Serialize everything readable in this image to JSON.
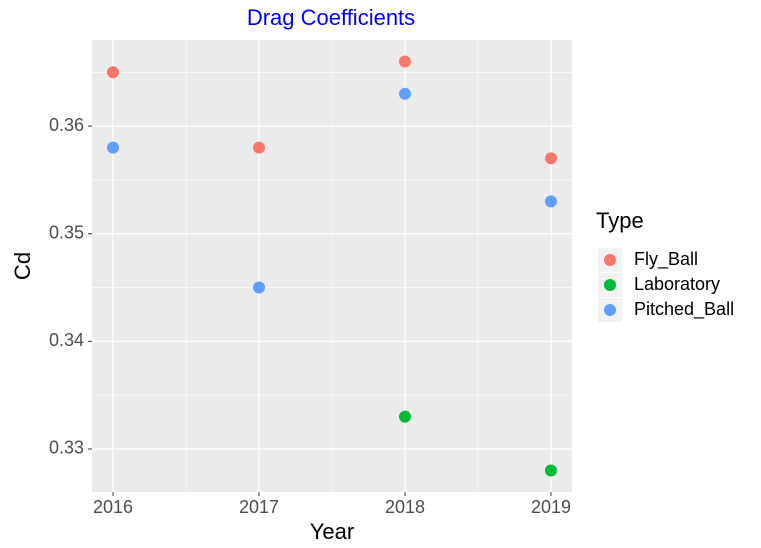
{
  "chart_data": {
    "type": "scatter",
    "title": "Drag Coefficients",
    "x_label": "Year",
    "y_label": "Cd",
    "legend_title": "Type",
    "legend": "right",
    "series": [
      {
        "name": "Fly_Ball",
        "color": "#F8766D",
        "x": [
          2016,
          2017,
          2018,
          2019
        ],
        "values": [
          0.365,
          0.358,
          0.366,
          0.357
        ]
      },
      {
        "name": "Laboratory",
        "color": "#00BA38",
        "x": [
          2018,
          2019
        ],
        "values": [
          0.333,
          0.328
        ]
      },
      {
        "name": "Pitched_Ball",
        "color": "#619CFF",
        "x": [
          2016,
          2017,
          2018,
          2019
        ],
        "values": [
          0.358,
          0.345,
          0.363,
          0.353
        ]
      }
    ],
    "xlim": [
      2015.856,
      2019.144
    ],
    "xticks": [
      2016,
      2017,
      2018,
      2019
    ],
    "ylim": [
      0.326,
      0.368
    ],
    "yticks": [
      0.33,
      0.34,
      0.35,
      0.36
    ],
    "grid": true
  }
}
